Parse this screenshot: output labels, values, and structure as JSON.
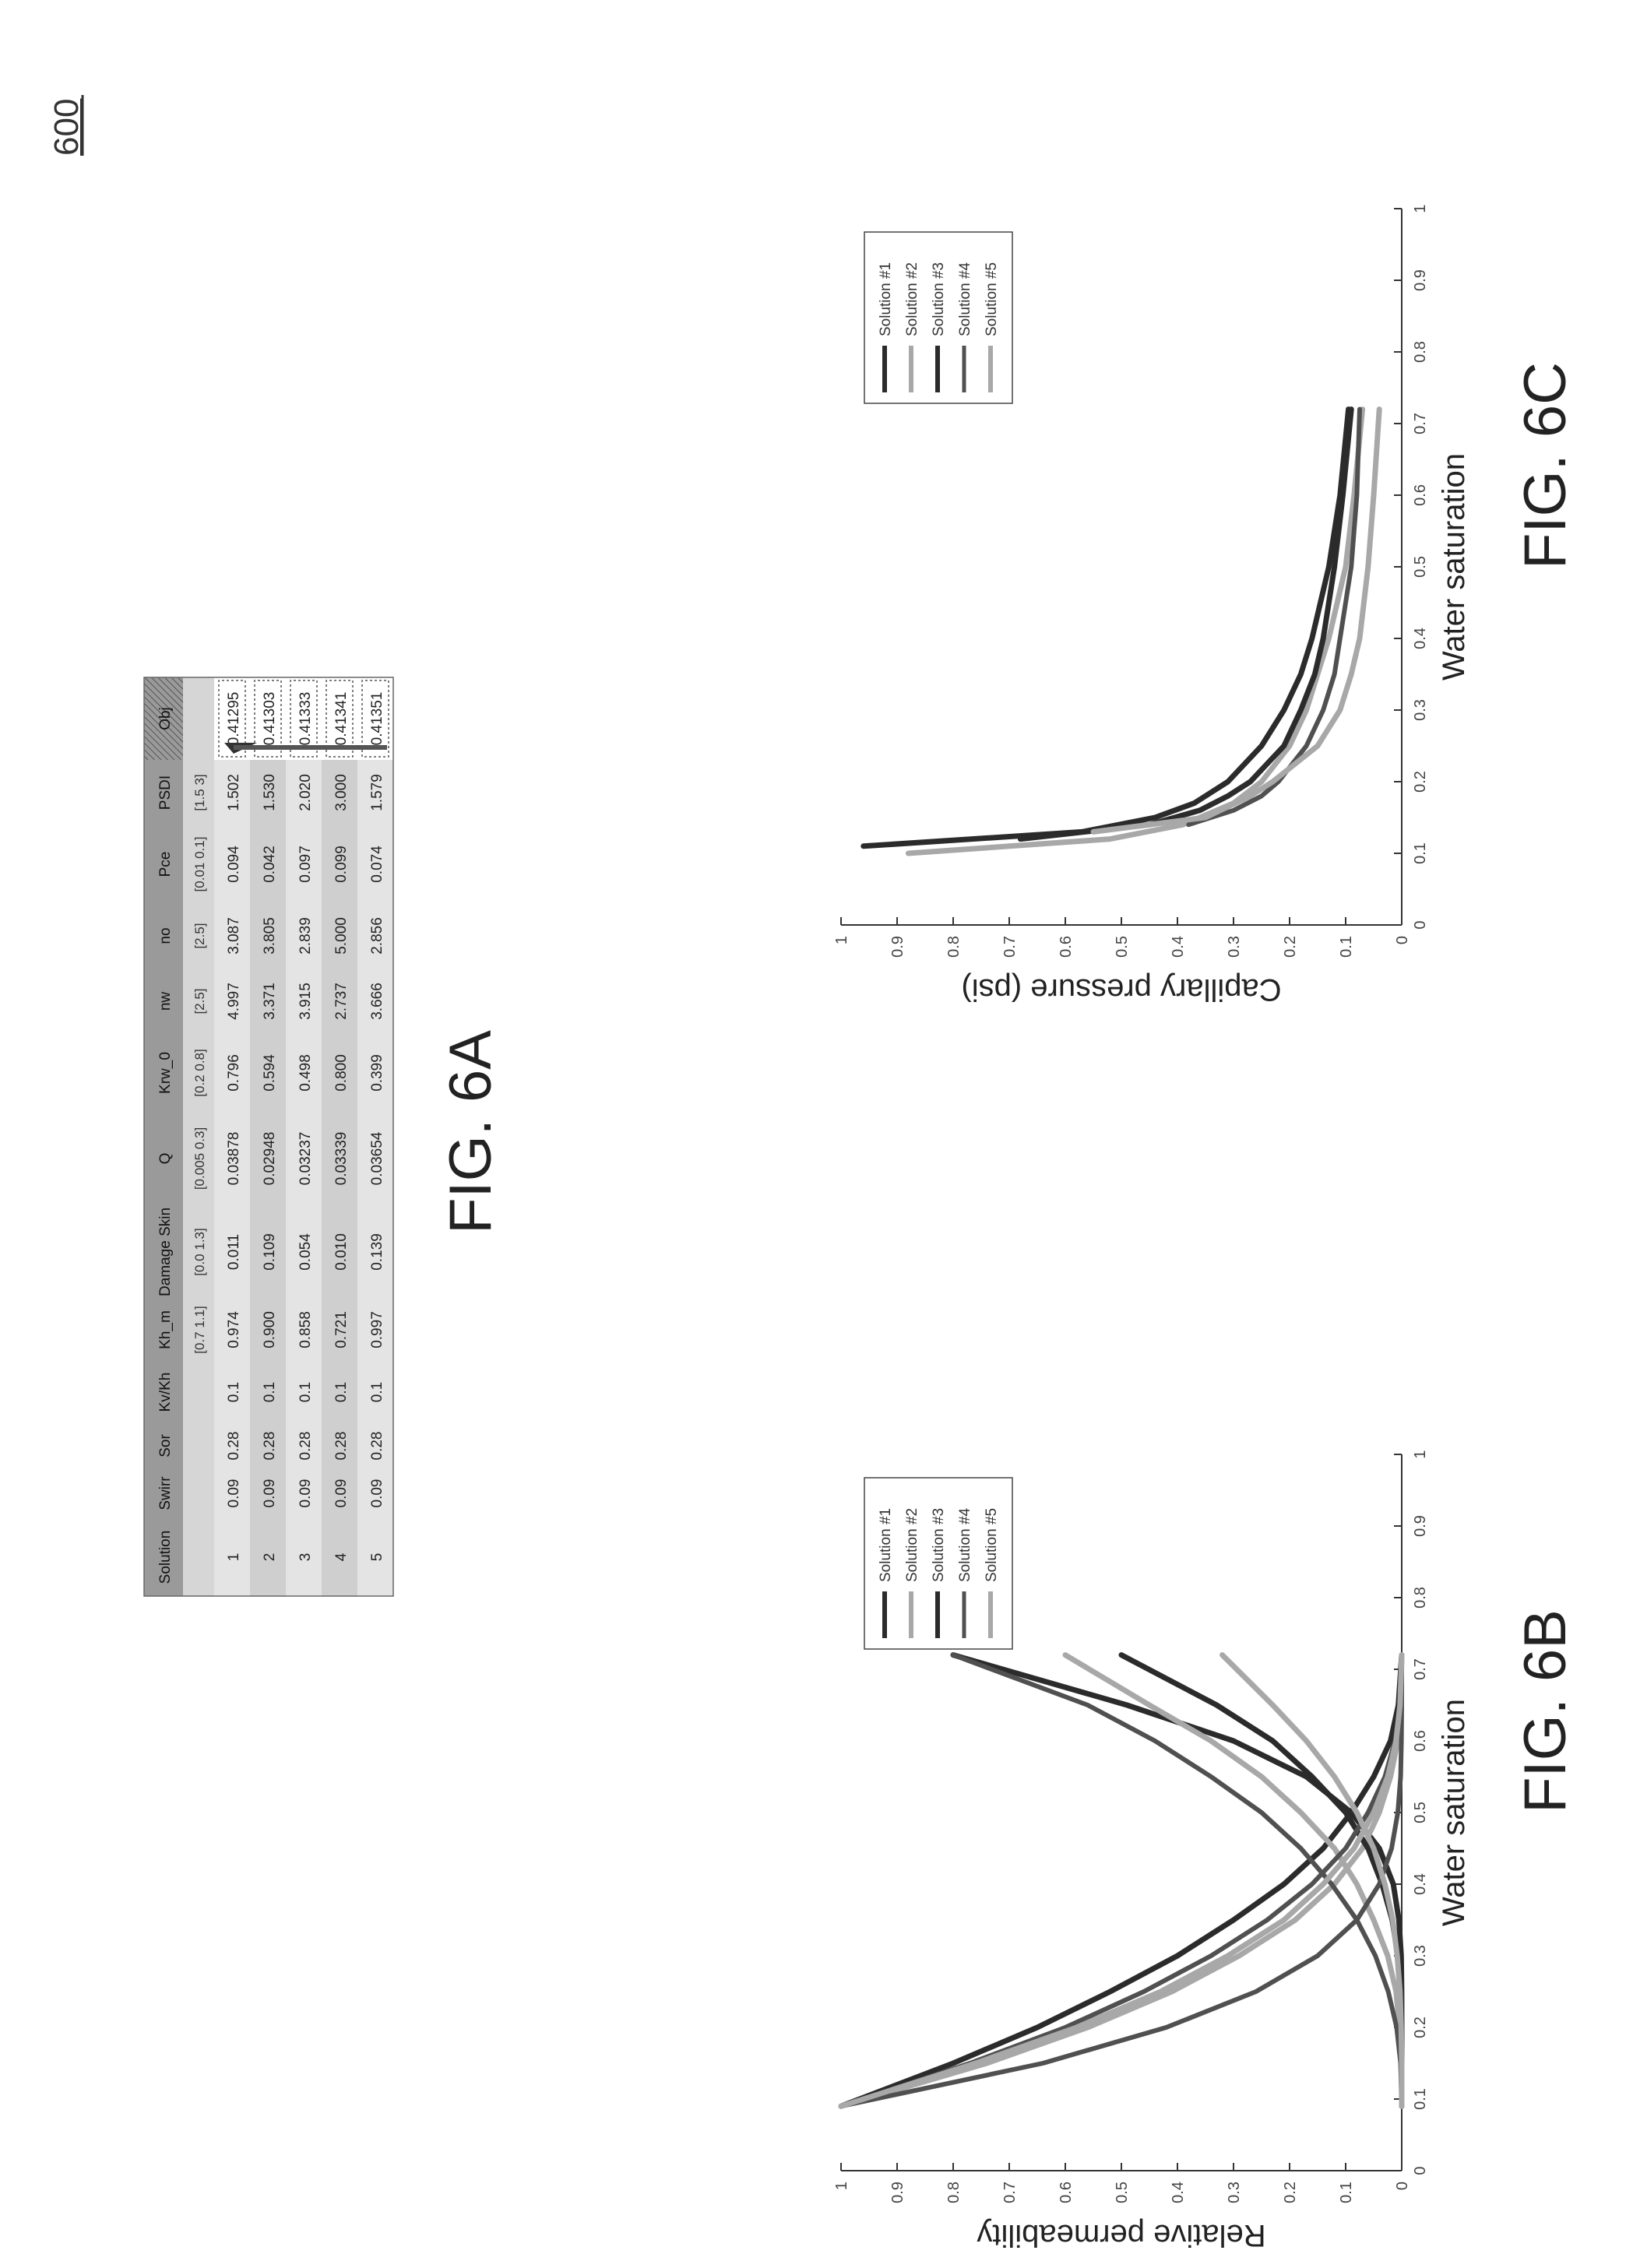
{
  "figure_number": "600",
  "fig6a": {
    "caption": "FIG. 6A",
    "headers": [
      "Solution",
      "Swirr",
      "Sor",
      "Kv/Kh",
      "Kh_m",
      "Damage Skin",
      "Q",
      "Krw_0",
      "nw",
      "no",
      "Pce",
      "PSDI",
      "Obj"
    ],
    "ranges": [
      "",
      "",
      "",
      "",
      "[0.7 1.1]",
      "[0.0 1.3]",
      "[0.005 0.3]",
      "[0.2 0.8]",
      "[2.5]",
      "[2.5]",
      "[0.01 0.1]",
      "[1.5 3]",
      ""
    ],
    "rows": [
      [
        "1",
        "0.09",
        "0.28",
        "0.1",
        "0.974",
        "0.011",
        "0.03878",
        "0.796",
        "4.997",
        "3.087",
        "0.094",
        "1.502",
        "0.41295"
      ],
      [
        "2",
        "0.09",
        "0.28",
        "0.1",
        "0.900",
        "0.109",
        "0.02948",
        "0.594",
        "3.371",
        "3.805",
        "0.042",
        "1.530",
        "0.41303"
      ],
      [
        "3",
        "0.09",
        "0.28",
        "0.1",
        "0.858",
        "0.054",
        "0.03237",
        "0.498",
        "3.915",
        "2.839",
        "0.097",
        "2.020",
        "0.41333"
      ],
      [
        "4",
        "0.09",
        "0.28",
        "0.1",
        "0.721",
        "0.010",
        "0.03339",
        "0.800",
        "2.737",
        "5.000",
        "0.099",
        "3.000",
        "0.41341"
      ],
      [
        "5",
        "0.09",
        "0.28",
        "0.1",
        "0.997",
        "0.139",
        "0.03654",
        "0.399",
        "3.666",
        "2.856",
        "0.074",
        "1.579",
        "0.41351"
      ]
    ]
  },
  "colors": {
    "dark": "#2b2b2b",
    "mid": "#505050",
    "light": "#a8a8a8",
    "table_header": "#9a9a9a",
    "table_band": "#d6d6d6"
  },
  "chart_data": [
    {
      "id": "fig6b",
      "type": "line",
      "caption": "FIG. 6B",
      "xlabel": "Water saturation",
      "ylabel": "Relative permeability",
      "xlim": [
        0,
        1
      ],
      "ylim": [
        0,
        1
      ],
      "xticks": [
        "0",
        "0.1",
        "0.2",
        "0.3",
        "0.4",
        "0.5",
        "0.6",
        "0.7",
        "0.8",
        "0.9",
        "1"
      ],
      "yticks": [
        "0",
        "0.1",
        "0.2",
        "0.3",
        "0.4",
        "0.5",
        "0.6",
        "0.7",
        "0.8",
        "0.9",
        "1"
      ],
      "legend": [
        "Solution #1",
        "Solution #2",
        "Solution #3",
        "Solution #4",
        "Solution #5"
      ],
      "legend_position": "top-right",
      "series": [
        {
          "name": "Solution #1 Krw",
          "style": "dark",
          "x": [
            0.09,
            0.15,
            0.2,
            0.25,
            0.3,
            0.35,
            0.4,
            0.45,
            0.5,
            0.55,
            0.6,
            0.65,
            0.72
          ],
          "y": [
            0,
            0,
            0,
            0.0001,
            0.001,
            0.005,
            0.015,
            0.04,
            0.09,
            0.17,
            0.3,
            0.49,
            0.8
          ]
        },
        {
          "name": "Solution #1 Kro",
          "style": "dark",
          "x": [
            0.09,
            0.15,
            0.2,
            0.25,
            0.3,
            0.35,
            0.4,
            0.45,
            0.5,
            0.55,
            0.6,
            0.65,
            0.72
          ],
          "y": [
            1.0,
            0.8,
            0.65,
            0.52,
            0.4,
            0.3,
            0.21,
            0.14,
            0.09,
            0.05,
            0.02,
            0.006,
            0
          ]
        },
        {
          "name": "Solution #2 Krw",
          "style": "light",
          "x": [
            0.09,
            0.15,
            0.2,
            0.25,
            0.3,
            0.35,
            0.4,
            0.45,
            0.5,
            0.55,
            0.6,
            0.65,
            0.72
          ],
          "y": [
            0,
            0.001,
            0.004,
            0.01,
            0.025,
            0.05,
            0.08,
            0.12,
            0.18,
            0.25,
            0.34,
            0.45,
            0.6
          ]
        },
        {
          "name": "Solution #2 Kro",
          "style": "light",
          "x": [
            0.09,
            0.15,
            0.2,
            0.25,
            0.3,
            0.35,
            0.4,
            0.45,
            0.5,
            0.55,
            0.6,
            0.65,
            0.72
          ],
          "y": [
            1.0,
            0.74,
            0.56,
            0.41,
            0.29,
            0.19,
            0.12,
            0.07,
            0.04,
            0.02,
            0.007,
            0.002,
            0
          ]
        },
        {
          "name": "Solution #3 Krw",
          "style": "dark",
          "x": [
            0.09,
            0.15,
            0.2,
            0.25,
            0.3,
            0.35,
            0.4,
            0.45,
            0.5,
            0.55,
            0.6,
            0.65,
            0.72
          ],
          "y": [
            0,
            0,
            0.0005,
            0.002,
            0.007,
            0.017,
            0.035,
            0.06,
            0.1,
            0.16,
            0.23,
            0.33,
            0.5
          ]
        },
        {
          "name": "Solution #3 Kro",
          "style": "mid",
          "x": [
            0.09,
            0.15,
            0.2,
            0.25,
            0.3,
            0.35,
            0.4,
            0.45,
            0.5,
            0.55,
            0.6,
            0.65,
            0.72
          ],
          "y": [
            1.0,
            0.77,
            0.6,
            0.46,
            0.34,
            0.24,
            0.16,
            0.1,
            0.06,
            0.03,
            0.012,
            0.003,
            0
          ]
        },
        {
          "name": "Solution #4 Krw",
          "style": "mid",
          "x": [
            0.09,
            0.15,
            0.2,
            0.25,
            0.3,
            0.35,
            0.4,
            0.45,
            0.5,
            0.55,
            0.6,
            0.65,
            0.72
          ],
          "y": [
            0,
            0.002,
            0.009,
            0.024,
            0.047,
            0.08,
            0.125,
            0.18,
            0.25,
            0.34,
            0.44,
            0.56,
            0.8
          ]
        },
        {
          "name": "Solution #4 Kro",
          "style": "mid",
          "x": [
            0.09,
            0.15,
            0.2,
            0.25,
            0.3,
            0.35,
            0.4,
            0.45,
            0.5,
            0.55,
            0.6,
            0.65,
            0.72
          ],
          "y": [
            1.0,
            0.64,
            0.42,
            0.26,
            0.15,
            0.08,
            0.04,
            0.018,
            0.007,
            0.002,
            0.0005,
            0,
            0
          ]
        },
        {
          "name": "Solution #5 Krw",
          "style": "light",
          "x": [
            0.09,
            0.15,
            0.2,
            0.25,
            0.3,
            0.35,
            0.4,
            0.45,
            0.5,
            0.55,
            0.6,
            0.65,
            0.72
          ],
          "y": [
            0,
            0,
            0.001,
            0.003,
            0.008,
            0.016,
            0.03,
            0.05,
            0.08,
            0.12,
            0.17,
            0.23,
            0.32
          ]
        },
        {
          "name": "Solution #5 Kro",
          "style": "light",
          "x": [
            0.09,
            0.15,
            0.2,
            0.25,
            0.3,
            0.35,
            0.4,
            0.45,
            0.5,
            0.55,
            0.6,
            0.65,
            0.72
          ],
          "y": [
            1.0,
            0.76,
            0.58,
            0.43,
            0.31,
            0.21,
            0.14,
            0.085,
            0.05,
            0.025,
            0.01,
            0.003,
            0
          ]
        }
      ]
    },
    {
      "id": "fig6c",
      "type": "line",
      "caption": "FIG. 6C",
      "xlabel": "Water saturation",
      "ylabel": "Capillary pressure (psi)",
      "xlim": [
        0,
        1
      ],
      "ylim": [
        0,
        1
      ],
      "xticks": [
        "0",
        "0.1",
        "0.2",
        "0.3",
        "0.4",
        "0.5",
        "0.6",
        "0.7",
        "0.8",
        "0.9",
        "1"
      ],
      "yticks": [
        "0",
        "0.1",
        "0.2",
        "0.3",
        "0.4",
        "0.5",
        "0.6",
        "0.7",
        "0.8",
        "0.9",
        "1"
      ],
      "legend": [
        "Solution #1",
        "Solution #2",
        "Solution #3",
        "Solution #4",
        "Solution #5"
      ],
      "legend_position": "top-right",
      "series": [
        {
          "name": "Solution #1",
          "style": "dark",
          "x": [
            0.11,
            0.13,
            0.15,
            0.17,
            0.2,
            0.25,
            0.3,
            0.35,
            0.4,
            0.5,
            0.6,
            0.72
          ],
          "y": [
            0.96,
            0.57,
            0.44,
            0.37,
            0.31,
            0.25,
            0.21,
            0.18,
            0.16,
            0.13,
            0.11,
            0.095
          ]
        },
        {
          "name": "Solution #2",
          "style": "light",
          "x": [
            0.1,
            0.12,
            0.14,
            0.17,
            0.2,
            0.25,
            0.3,
            0.35,
            0.4,
            0.5,
            0.6,
            0.72
          ],
          "y": [
            0.88,
            0.52,
            0.39,
            0.3,
            0.25,
            0.2,
            0.17,
            0.15,
            0.13,
            0.1,
            0.085,
            0.07
          ]
        },
        {
          "name": "Solution #3",
          "style": "dark",
          "x": [
            0.12,
            0.14,
            0.16,
            0.18,
            0.2,
            0.25,
            0.3,
            0.35,
            0.4,
            0.5,
            0.6,
            0.72
          ],
          "y": [
            0.68,
            0.45,
            0.36,
            0.31,
            0.27,
            0.21,
            0.18,
            0.155,
            0.14,
            0.12,
            0.105,
            0.09
          ]
        },
        {
          "name": "Solution #4",
          "style": "mid",
          "x": [
            0.14,
            0.16,
            0.18,
            0.2,
            0.25,
            0.3,
            0.35,
            0.4,
            0.5,
            0.6,
            0.72
          ],
          "y": [
            0.38,
            0.3,
            0.25,
            0.22,
            0.17,
            0.14,
            0.12,
            0.11,
            0.09,
            0.08,
            0.075
          ]
        },
        {
          "name": "Solution #5",
          "style": "light",
          "x": [
            0.13,
            0.15,
            0.18,
            0.2,
            0.25,
            0.3,
            0.35,
            0.4,
            0.5,
            0.6,
            0.72
          ],
          "y": [
            0.55,
            0.35,
            0.27,
            0.23,
            0.15,
            0.11,
            0.09,
            0.075,
            0.06,
            0.05,
            0.04
          ]
        }
      ]
    }
  ]
}
